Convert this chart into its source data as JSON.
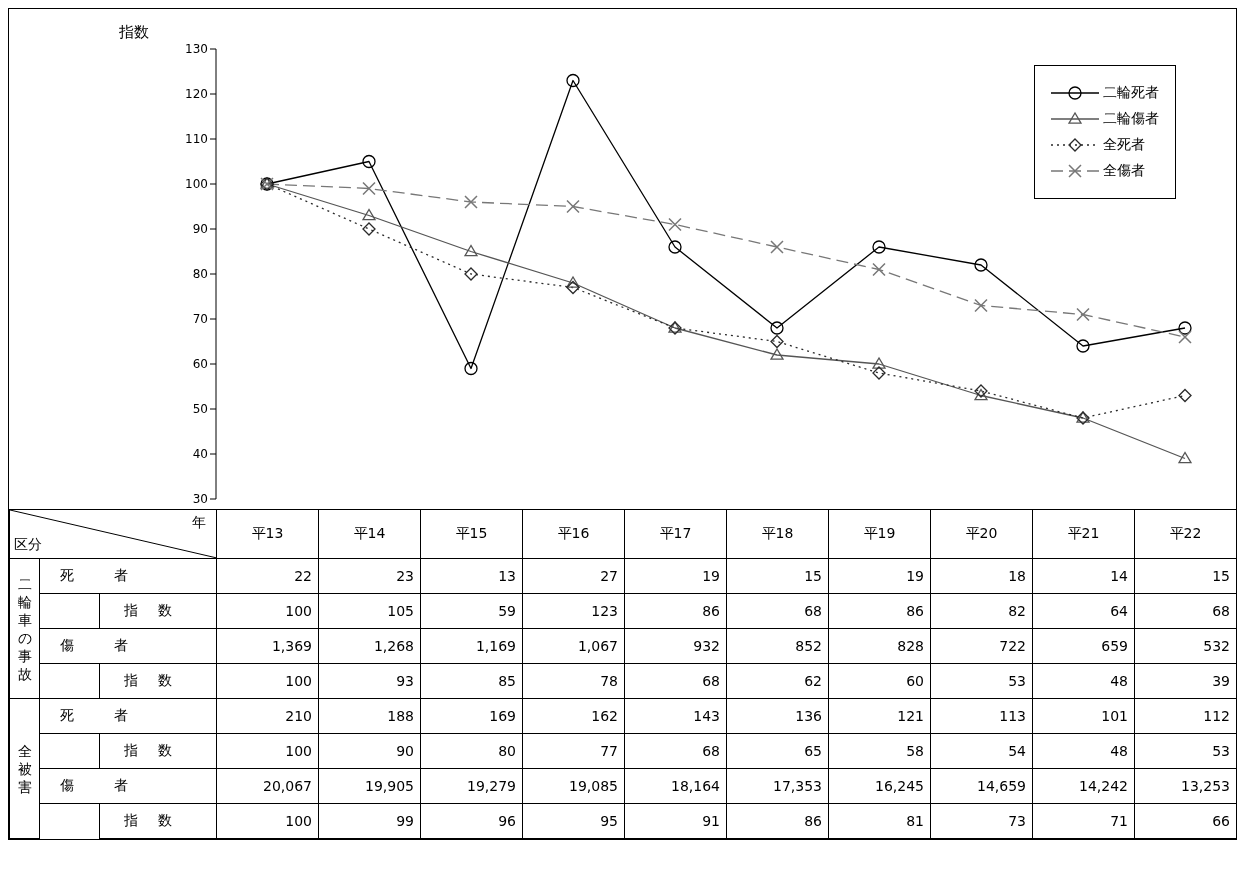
{
  "chart_data": [
    {
      "type": "line",
      "ylabel": "指数",
      "categories": [
        null,
        null,
        null,
        null,
        null,
        null,
        null,
        null,
        null,
        null
      ],
      "ylim": [
        30,
        130
      ],
      "yticks": [
        30,
        40,
        50,
        60,
        70,
        80,
        90,
        100,
        110,
        120,
        130
      ],
      "legend": "top right",
      "tick_labels": "y",
      "data_labels": true,
      "series": [
        {
          "name": "二輪死者",
          "color": "#000000",
          "marker": "circle",
          "line_style": "solid",
          "values": [
            100,
            105,
            59,
            123,
            86,
            68,
            86,
            82,
            64,
            68
          ]
        },
        {
          "name": "二輪傷者",
          "color": "#555555",
          "marker": "triangle",
          "line_style": "solid",
          "values": [
            100,
            93,
            85,
            78,
            68,
            62,
            60,
            53,
            48,
            39
          ]
        },
        {
          "name": "全死者",
          "color": "#2a2a2a",
          "marker": "diamond",
          "line_style": "dotted",
          "values": [
            100,
            90,
            80,
            77,
            68,
            65,
            58,
            54,
            48,
            53
          ]
        },
        {
          "name": "全傷者",
          "color": "#777777",
          "marker": "cross",
          "line_style": "dashed",
          "values": [
            100,
            99,
            96,
            95,
            91,
            86,
            81,
            73,
            71,
            66
          ]
        }
      ]
    },
    {
      "type": "other",
      "categories": [
        "平13",
        "平14",
        "平15",
        "平16",
        "平17",
        "平18",
        "平19",
        "平20",
        "平21",
        "平22"
      ],
      "xlabel": "年",
      "ylabel": "区分",
      "data_labels": true,
      "annotations": [
        "二輪車の事故",
        "全被害"
      ],
      "series": [
        {
          "name": "死者",
          "values": [
            22,
            23,
            13,
            27,
            19,
            15,
            19,
            18,
            14,
            15
          ]
        },
        {
          "name": "傷者",
          "values": [
            1369,
            1268,
            1169,
            1067,
            932,
            852,
            828,
            722,
            659,
            532
          ],
          "value_labels": [
            "1,369",
            "1,268",
            "1,169",
            "1,067",
            "932",
            "852",
            "828",
            "722",
            "659",
            "532"
          ]
        },
        {
          "name": "死者",
          "values": [
            210,
            188,
            169,
            162,
            143,
            136,
            121,
            113,
            101,
            112
          ]
        },
        {
          "name": "傷者",
          "values": [
            20067,
            19905,
            19279,
            19085,
            18164,
            17353,
            16245,
            14659,
            14242,
            13253
          ],
          "value_labels": [
            "20,067",
            "19,905",
            "19,279",
            "19,085",
            "18,164",
            "17,353",
            "16,245",
            "14,659",
            "14,242",
            "13,253"
          ]
        }
      ]
    }
  ]
}
